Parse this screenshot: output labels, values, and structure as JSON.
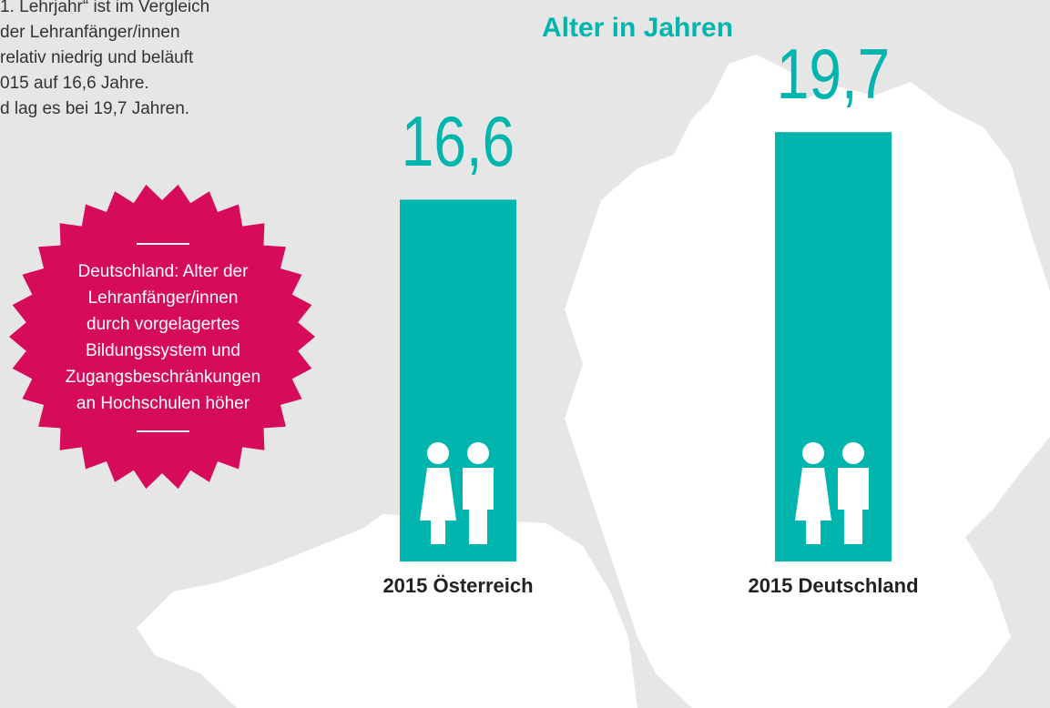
{
  "chart_data": {
    "type": "bar",
    "title": "Alter in Jahren",
    "categories": [
      "2015 Österreich",
      "2015 Deutschland"
    ],
    "values": [
      16.6,
      19.7
    ],
    "value_labels": [
      "16,6",
      "19,7"
    ],
    "color": "#00b5ad",
    "ylim": [
      0,
      20
    ]
  },
  "text_lines": [
    "1. Lehrjahr“ ist im Vergleich",
    "der Lehranfänger/innen",
    "relativ niedrig und beläuft",
    "015 auf 16,6 Jahre.",
    "d lag es bei 19,7 Jahren."
  ],
  "badge": {
    "lines": [
      "Deutschland: Alter der",
      "Lehranfänger/innen",
      "durch vorgelagertes",
      "Bildungssystem und",
      "Zugangsbeschränkungen",
      "an Hochschulen höher"
    ]
  }
}
